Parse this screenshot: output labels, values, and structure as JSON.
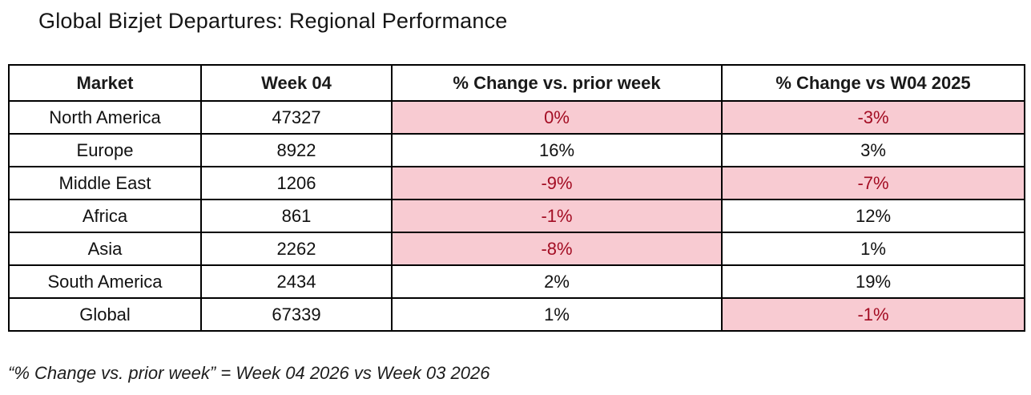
{
  "title": "Global Bizjet Departures: Regional Performance",
  "table": {
    "columns": [
      "Market",
      "Week 04",
      "% Change vs. prior week",
      "% Change vs W04 2025"
    ],
    "rows": [
      {
        "market": "North America",
        "week04": "47327",
        "pct_prior": {
          "value": "0%",
          "highlight": true
        },
        "pct_yoy": {
          "value": "-3%",
          "highlight": true
        }
      },
      {
        "market": "Europe",
        "week04": "8922",
        "pct_prior": {
          "value": "16%",
          "highlight": false
        },
        "pct_yoy": {
          "value": "3%",
          "highlight": false
        }
      },
      {
        "market": "Middle East",
        "week04": "1206",
        "pct_prior": {
          "value": "-9%",
          "highlight": true
        },
        "pct_yoy": {
          "value": "-7%",
          "highlight": true
        }
      },
      {
        "market": "Africa",
        "week04": "861",
        "pct_prior": {
          "value": "-1%",
          "highlight": true
        },
        "pct_yoy": {
          "value": "12%",
          "highlight": false
        }
      },
      {
        "market": "Asia",
        "week04": "2262",
        "pct_prior": {
          "value": "-8%",
          "highlight": true
        },
        "pct_yoy": {
          "value": "1%",
          "highlight": false
        }
      },
      {
        "market": "South America",
        "week04": "2434",
        "pct_prior": {
          "value": "2%",
          "highlight": false
        },
        "pct_yoy": {
          "value": "19%",
          "highlight": false
        }
      },
      {
        "market": "Global",
        "week04": "67339",
        "pct_prior": {
          "value": "1%",
          "highlight": false
        },
        "pct_yoy": {
          "value": "-1%",
          "highlight": true
        }
      }
    ]
  },
  "footnote": "“% Change vs. prior week” = Week 04 2026 vs Week 03 2026",
  "colors": {
    "highlight_fill": "#F8CBD2",
    "highlight_text": "#A30D23",
    "border": "#000000"
  }
}
